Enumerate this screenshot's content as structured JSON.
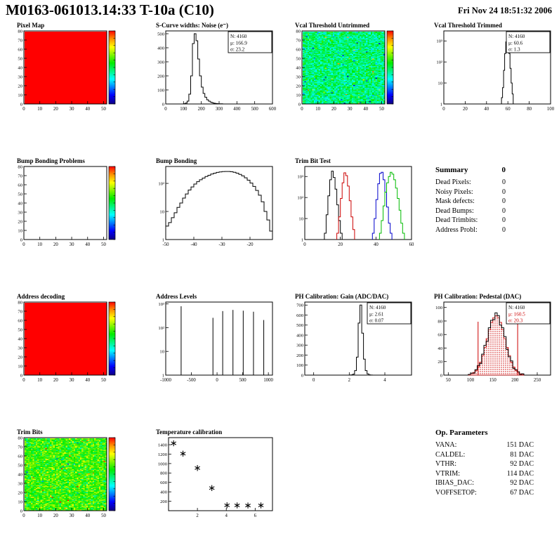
{
  "header": {
    "title": "M0163-061013.14:33 T-10a (C10)",
    "date": "Fri Nov 24 18:51:32 2006"
  },
  "summary": {
    "title": "Summary",
    "count": "0",
    "rows": [
      {
        "label": "Dead Pixels:",
        "value": "0"
      },
      {
        "label": "Noisy Pixels:",
        "value": "0"
      },
      {
        "label": "Mask defects:",
        "value": "0"
      },
      {
        "label": "Dead Bumps:",
        "value": "0"
      },
      {
        "label": "Dead Trimbits:",
        "value": "0"
      },
      {
        "label": "Address Probl:",
        "value": "0"
      }
    ]
  },
  "op_parameters": {
    "title": "Op. Parameters",
    "rows": [
      {
        "label": "VANA:",
        "value": "151 DAC"
      },
      {
        "label": "CALDEL:",
        "value": "81 DAC"
      },
      {
        "label": "VTHR:",
        "value": "92 DAC"
      },
      {
        "label": "VTRIM:",
        "value": "114 DAC"
      },
      {
        "label": "IBIAS_DAC:",
        "value": "92 DAC"
      },
      {
        "label": "VOFFSETOP:",
        "value": "67 DAC"
      }
    ]
  },
  "palette_colors": {
    "min": "#0f0082",
    "mid": "#00eb00",
    "max": "#ff0000",
    "accent_red": "#cc0000"
  },
  "chart_data": [
    {
      "title": "Pixel Map",
      "type": "heatmap",
      "fill": "solid",
      "colorbar": true,
      "x": {
        "min": 0,
        "max": 52,
        "ticks": [
          0,
          10,
          20,
          30,
          40,
          50
        ]
      },
      "y": {
        "min": 0,
        "max": 80,
        "ticks": [
          0,
          10,
          20,
          30,
          40,
          50,
          60,
          70,
          80
        ]
      }
    },
    {
      "title": "S-Curve widths: Noise (e⁻)",
      "type": "hist",
      "x": {
        "min": 0,
        "max": 600,
        "ticks": [
          0,
          100,
          200,
          300,
          400,
          500,
          600
        ]
      },
      "y": {
        "scale": "linear",
        "max": 520,
        "ticks": [
          0,
          100,
          200,
          300,
          400,
          500
        ]
      },
      "bins": {
        "start": 100,
        "width": 10,
        "counts": [
          2,
          6,
          20,
          70,
          200,
          430,
          500,
          450,
          320,
          200,
          120,
          75,
          48,
          30,
          20,
          13,
          8,
          5,
          3,
          2,
          1,
          1
        ]
      },
      "stats": [
        {
          "label": "N: 4160"
        },
        {
          "label": "μ: 166.9"
        },
        {
          "label": "σ: 23.2"
        }
      ]
    },
    {
      "title": "Vcal Threshold Untrimmed",
      "type": "heatmap",
      "fill": "noise",
      "noise": {
        "seed": 7,
        "mean": 0.46,
        "spread": 0.11
      },
      "colorbar": true,
      "x": {
        "min": 0,
        "max": 52,
        "ticks": [
          0,
          10,
          20,
          30,
          40,
          50
        ]
      },
      "y": {
        "min": 0,
        "max": 80,
        "ticks": [
          0,
          10,
          20,
          30,
          40,
          50,
          60,
          70,
          80
        ]
      }
    },
    {
      "title": "Vcal Threshold Trimmed",
      "type": "hist",
      "x": {
        "min": 0,
        "max": 100,
        "ticks": [
          0,
          20,
          40,
          60,
          80,
          100
        ]
      },
      "y": {
        "scale": "log",
        "max": 3000,
        "ticks": [
          1,
          10,
          100,
          1000
        ]
      },
      "bins": {
        "start": 54,
        "width": 1,
        "counts": [
          2,
          6,
          40,
          250,
          900,
          1500,
          800,
          250,
          50,
          10,
          3
        ]
      },
      "stats": [
        {
          "label": "N: 4160"
        },
        {
          "label": "μ: 60.6"
        },
        {
          "label": "σ: 1.3"
        }
      ]
    },
    {
      "title": "Bump Bonding Problems",
      "type": "heatmap",
      "fill": "empty",
      "colorbar": true,
      "x": {
        "min": 0,
        "max": 52,
        "ticks": [
          0,
          10,
          20,
          30,
          40,
          50
        ]
      },
      "y": {
        "min": 0,
        "max": 80,
        "ticks": [
          0,
          10,
          20,
          30,
          40,
          50,
          60,
          70,
          80
        ]
      }
    },
    {
      "title": "Bump Bonding",
      "type": "hist",
      "x": {
        "min": -50,
        "max": -12,
        "ticks": [
          -50,
          -40,
          -30,
          -20
        ]
      },
      "y": {
        "scale": "log",
        "max": 400,
        "ticks": [
          1,
          10,
          100
        ]
      },
      "bins": {
        "start": -50,
        "width": 1,
        "counts": [
          3,
          4,
          6,
          9,
          14,
          20,
          30,
          42,
          58,
          75,
          95,
          115,
          135,
          155,
          175,
          195,
          215,
          232,
          246,
          256,
          263,
          266,
          265,
          259,
          248,
          232,
          210,
          185,
          158,
          130,
          103,
          78,
          56,
          38,
          22,
          10,
          5,
          2
        ]
      }
    },
    {
      "title": "Trim Bit Test",
      "type": "multihist",
      "x": {
        "min": 0,
        "max": 60,
        "ticks": [
          0,
          20,
          40,
          60
        ]
      },
      "y": {
        "scale": "log",
        "max": 3000,
        "ticks": [
          1,
          10,
          100,
          1000
        ]
      },
      "series": [
        {
          "color": "#000000",
          "start": 11,
          "width": 1,
          "counts": [
            2,
            15,
            120,
            700,
            1800,
            900,
            250,
            45,
            8,
            2
          ]
        },
        {
          "color": "#cc0000",
          "start": 18,
          "width": 1,
          "counts": [
            2,
            12,
            90,
            500,
            1500,
            1100,
            350,
            70,
            12,
            3
          ]
        },
        {
          "color": "#0000cc",
          "start": 38,
          "width": 1,
          "counts": [
            2,
            10,
            80,
            450,
            1400,
            1600,
            700,
            180,
            35,
            6,
            2
          ]
        },
        {
          "color": "#00bb00",
          "start": 42,
          "width": 1,
          "counts": [
            2,
            8,
            40,
            180,
            500,
            1000,
            1600,
            1300,
            700,
            280,
            90,
            25,
            6,
            2
          ]
        }
      ]
    },
    {
      "title": "Address decoding",
      "type": "heatmap",
      "fill": "solid",
      "colorbar": true,
      "x": {
        "min": 0,
        "max": 52,
        "ticks": [
          0,
          10,
          20,
          30,
          40,
          50
        ]
      },
      "y": {
        "min": 0,
        "max": 80,
        "ticks": [
          0,
          10,
          20,
          30,
          40,
          50,
          60,
          70,
          80
        ]
      }
    },
    {
      "title": "Address Levels",
      "type": "spikes",
      "x": {
        "min": -1000,
        "max": 1080,
        "ticks": [
          -1000,
          -500,
          0,
          500,
          1000
        ]
      },
      "y": {
        "scale": "log",
        "max": 1200,
        "ticks": [
          1,
          10,
          100,
          1000
        ]
      },
      "spikes": [
        [
          -700,
          800
        ],
        [
          -80,
          260
        ],
        [
          110,
          500
        ],
        [
          310,
          560
        ],
        [
          510,
          520
        ],
        [
          710,
          470
        ],
        [
          910,
          210
        ]
      ]
    },
    {
      "title": "PH Calibration: Gain (ADC/DAC)",
      "type": "hist",
      "x": {
        "min": -0.5,
        "max": 5.5,
        "ticks": [
          0,
          2,
          4
        ]
      },
      "y": {
        "scale": "linear",
        "max": 730,
        "ticks": [
          0,
          100,
          200,
          300,
          400,
          500,
          600,
          700
        ]
      },
      "bins": {
        "start": 2.0,
        "width": 0.1,
        "counts": [
          1,
          3,
          10,
          45,
          180,
          520,
          700,
          420,
          160,
          45,
          12,
          3,
          1
        ]
      },
      "stats": [
        {
          "label": "N: 4160"
        },
        {
          "label": "μ: 2.61"
        },
        {
          "label": "σ: 0.07"
        }
      ]
    },
    {
      "title": "PH Calibration: Pedestal (DAC)",
      "type": "pedestal",
      "x": {
        "min": 40,
        "max": 280,
        "ticks": [
          50,
          100,
          150,
          200,
          250
        ]
      },
      "y": {
        "scale": "linear",
        "max": 108,
        "ticks": [
          0,
          20,
          40,
          60,
          80,
          100
        ]
      },
      "fit": {
        "start": 95,
        "width": 5,
        "counts": [
          1,
          2,
          4,
          7,
          12,
          19,
          29,
          41,
          54,
          67,
          78,
          85,
          88,
          85,
          78,
          67,
          54,
          41,
          29,
          19,
          12,
          7,
          4,
          2,
          1
        ]
      },
      "data": {
        "start": 95,
        "width": 5,
        "counts": [
          1,
          3,
          3,
          8,
          14,
          17,
          31,
          44,
          50,
          70,
          81,
          82,
          92,
          88,
          74,
          70,
          57,
          38,
          27,
          21,
          10,
          8,
          5,
          1,
          2
        ]
      },
      "cut_lines": [
        117,
        206
      ],
      "stats": [
        {
          "label": "N: 4160"
        },
        {
          "label": "μ: 160.5",
          "color": "#cc0000"
        },
        {
          "label": "σ: 20.3",
          "color": "#cc0000"
        }
      ]
    },
    {
      "title": "Trim Bits",
      "type": "heatmap",
      "fill": "noise",
      "noise": {
        "seed": 13,
        "mean": 0.6,
        "spread": 0.12
      },
      "colorbar": true,
      "x": {
        "min": 0,
        "max": 52,
        "ticks": [
          0,
          10,
          20,
          30,
          40,
          50
        ]
      },
      "y": {
        "min": 0,
        "max": 80,
        "ticks": [
          0,
          10,
          20,
          30,
          40,
          50,
          60,
          70,
          80
        ]
      }
    },
    {
      "title": "Temperature calibration",
      "type": "scatter",
      "x": {
        "min": 0,
        "max": 7.2,
        "ticks": [
          2,
          4,
          6
        ]
      },
      "y": {
        "scale": "linear",
        "max": 1550,
        "ticks": [
          200,
          400,
          600,
          800,
          1000,
          1200,
          1400
        ]
      },
      "points": [
        [
          0.35,
          1430
        ],
        [
          1.0,
          1210
        ],
        [
          2.0,
          905
        ],
        [
          3.0,
          480
        ],
        [
          4.05,
          115
        ],
        [
          4.75,
          112
        ],
        [
          5.5,
          110
        ],
        [
          6.4,
          112
        ]
      ]
    }
  ]
}
